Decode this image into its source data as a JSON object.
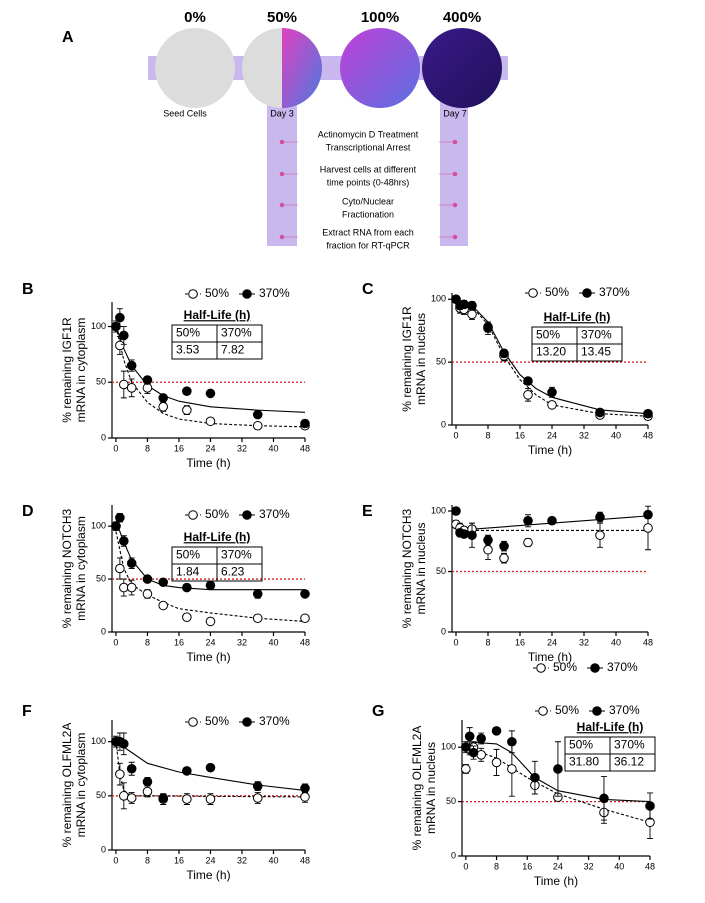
{
  "diagram": {
    "panel": "A",
    "stages": [
      {
        "label": "0%",
        "color": "#d64f9a"
      },
      {
        "label": "50%",
        "color": "#d64f9a"
      },
      {
        "label": "100%",
        "color": "#b48ad8"
      },
      {
        "label": "400%",
        "color": "#5b7fd6"
      }
    ],
    "captions": [
      "Seed Cells",
      "Day 3",
      "Day 7"
    ],
    "steps": [
      [
        "Actinomycin D Treatment",
        "Transcriptional Arrest"
      ],
      [
        "Harvest cells at different",
        "time points (0-48hrs)"
      ],
      [
        "Cyto/Nuclear",
        "Fractionation"
      ],
      [
        "Extract RNA from each",
        "fraction for RT-qPCR"
      ]
    ]
  },
  "chart_data": [
    {
      "type": "scatter",
      "panel": "B",
      "ylabel": [
        "% remaining IGF1R",
        "mRNA in cytoplasm"
      ],
      "xlabel": "Time (h)",
      "xlim": [
        -1,
        48
      ],
      "xticks": [
        0,
        8,
        16,
        24,
        32,
        40,
        48
      ],
      "ylim": [
        0,
        122
      ],
      "yticks": [
        0,
        50,
        100
      ],
      "ref_line": {
        "value": 50,
        "color": "#cc2222"
      },
      "half_life": {
        "title": "Half-Life (h)",
        "columns": [
          "50%",
          "370%"
        ],
        "values": [
          "3.53",
          "7.82"
        ]
      },
      "series": [
        {
          "name": "50%",
          "color": "#000000",
          "fill": "#ffffff",
          "dashed": true,
          "x": [
            0,
            1,
            2,
            4,
            8,
            12,
            18,
            24,
            36,
            48
          ],
          "values": [
            100,
            83,
            48,
            45,
            45,
            28,
            25,
            15,
            11,
            11
          ],
          "errors": [
            3,
            8,
            12,
            8,
            5,
            4,
            4,
            2,
            2,
            2
          ],
          "fit": {
            "x": [
              0,
              2,
              4,
              8,
              12,
              16,
              24,
              36,
              48
            ],
            "values": [
              100,
              70,
              50,
              32,
              22,
              17,
              13,
              11,
              10
            ]
          }
        },
        {
          "name": "370%",
          "color": "#000000",
          "fill": "#000000",
          "dashed": false,
          "x": [
            0,
            1,
            2,
            4,
            8,
            12,
            18,
            24,
            36,
            48
          ],
          "values": [
            100,
            108,
            92,
            65,
            52,
            36,
            42,
            40,
            21,
            13
          ],
          "errors": [
            5,
            8,
            8,
            5,
            3,
            3,
            2,
            2,
            2,
            3
          ],
          "fit": {
            "x": [
              0,
              2,
              4,
              8,
              12,
              16,
              24,
              36,
              48
            ],
            "values": [
              100,
              80,
              65,
              47,
              38,
              33,
              28,
              25,
              23
            ]
          }
        }
      ]
    },
    {
      "type": "scatter",
      "panel": "C",
      "ylabel": [
        "% remaining IGF1R",
        "mRNA in nucleus"
      ],
      "xlabel": "Time (h)",
      "xlim": [
        -1,
        48
      ],
      "xticks": [
        0,
        8,
        16,
        24,
        32,
        40,
        48
      ],
      "ylim": [
        0,
        105
      ],
      "yticks": [
        0,
        50,
        100
      ],
      "ref_line": {
        "value": 50,
        "color": "#cc2222"
      },
      "half_life": {
        "title": "Half-Life (h)",
        "columns": [
          "50%",
          "370%"
        ],
        "values": [
          "13.20",
          "13.45"
        ]
      },
      "series": [
        {
          "name": "50%",
          "color": "#000000",
          "fill": "#ffffff",
          "dashed": true,
          "x": [
            0,
            1,
            2,
            4,
            8,
            12,
            18,
            24,
            36,
            48
          ],
          "values": [
            100,
            93,
            92,
            88,
            77,
            55,
            24,
            16,
            8,
            7
          ],
          "errors": [
            2,
            4,
            4,
            4,
            5,
            4,
            5,
            2,
            2,
            2
          ],
          "fit": {
            "x": [
              0,
              4,
              8,
              12,
              16,
              20,
              24,
              36,
              48
            ],
            "values": [
              100,
              94,
              80,
              55,
              36,
              24,
              16,
              9,
              7
            ]
          }
        },
        {
          "name": "370%",
          "color": "#000000",
          "fill": "#000000",
          "dashed": false,
          "x": [
            0,
            1,
            2,
            4,
            8,
            12,
            18,
            24,
            36,
            48
          ],
          "values": [
            100,
            95,
            96,
            95,
            78,
            57,
            35,
            26,
            10,
            9
          ],
          "errors": [
            2,
            3,
            3,
            3,
            4,
            3,
            2,
            4,
            2,
            2
          ],
          "fit": {
            "x": [
              0,
              4,
              8,
              12,
              16,
              20,
              24,
              36,
              48
            ],
            "values": [
              100,
              95,
              82,
              58,
              40,
              29,
              22,
              12,
              9
            ]
          }
        }
      ]
    },
    {
      "type": "scatter",
      "panel": "D",
      "ylabel": [
        "% remaining NOTCH3",
        "mRNA in cytoplasm"
      ],
      "xlabel": "Time (h)",
      "xlim": [
        -1,
        48
      ],
      "xticks": [
        0,
        8,
        16,
        24,
        32,
        40,
        48
      ],
      "ylim": [
        0,
        120
      ],
      "yticks": [
        0,
        50,
        100
      ],
      "ref_line": {
        "value": 50,
        "color": "#cc2222"
      },
      "half_life": {
        "title": "Half-Life (h)",
        "columns": [
          "50%",
          "370%"
        ],
        "values": [
          "1.84",
          "6.23"
        ]
      },
      "series": [
        {
          "name": "50%",
          "color": "#000000",
          "fill": "#ffffff",
          "dashed": true,
          "x": [
            0,
            1,
            2,
            4,
            8,
            12,
            18,
            24,
            36,
            48
          ],
          "values": [
            100,
            60,
            42,
            42,
            36,
            25,
            14,
            10,
            13,
            13
          ],
          "errors": [
            3,
            10,
            8,
            7,
            4,
            2,
            2,
            2,
            2,
            2
          ],
          "fit": {
            "x": [
              0,
              2,
              4,
              8,
              12,
              16,
              24,
              36,
              48
            ],
            "values": [
              95,
              60,
              45,
              35,
              28,
              22,
              18,
              13,
              10
            ]
          }
        },
        {
          "name": "370%",
          "color": "#000000",
          "fill": "#000000",
          "dashed": false,
          "x": [
            0,
            1,
            2,
            4,
            8,
            12,
            18,
            24,
            36,
            48
          ],
          "values": [
            100,
            108,
            86,
            65,
            50,
            47,
            42,
            44,
            36,
            36
          ],
          "errors": [
            4,
            4,
            5,
            5,
            2,
            2,
            2,
            3,
            4,
            3
          ],
          "fit": {
            "x": [
              0,
              2,
              4,
              8,
              12,
              16,
              24,
              48
            ],
            "values": [
              105,
              85,
              68,
              50,
              44,
              42,
              40,
              40
            ]
          }
        }
      ]
    },
    {
      "type": "scatter",
      "panel": "E",
      "ylabel": [
        "% remaining NOTCH3",
        "mRNA in nucleus"
      ],
      "xlabel": "Time (h)",
      "xlim": [
        -1,
        48
      ],
      "xticks": [
        0,
        8,
        16,
        24,
        32,
        40,
        48
      ],
      "ylim": [
        0,
        105
      ],
      "yticks": [
        0,
        50,
        100
      ],
      "ref_line": {
        "value": 50,
        "color": "#cc2222"
      },
      "series": [
        {
          "name": "50%",
          "color": "#000000",
          "fill": "#ffffff",
          "dashed": true,
          "x": [
            0,
            1,
            2,
            4,
            8,
            12,
            18,
            36,
            48
          ],
          "values": [
            89,
            86,
            84,
            85,
            68,
            61,
            74,
            80,
            86
          ],
          "errors": [
            3,
            4,
            3,
            5,
            8,
            4,
            3,
            10,
            18
          ],
          "fit": {
            "x": [
              0,
              48
            ],
            "values": [
              84,
              84
            ]
          }
        },
        {
          "name": "370%",
          "color": "#000000",
          "fill": "#000000",
          "dashed": false,
          "x": [
            0,
            1,
            2,
            4,
            8,
            12,
            18,
            24,
            36,
            48
          ],
          "values": [
            100,
            82,
            81,
            80,
            76,
            71,
            92,
            92,
            95,
            97
          ],
          "errors": [
            2,
            3,
            3,
            10,
            4,
            4,
            5,
            2,
            4,
            3
          ],
          "fit": {
            "x": [
              0,
              48
            ],
            "values": [
              84,
              96
            ]
          }
        }
      ]
    },
    {
      "type": "scatter",
      "panel": "F",
      "ylabel": [
        "% remaining OLFML2A",
        "mRNA in cytoplasm"
      ],
      "xlabel": "Time (h)",
      "xlim": [
        -1,
        48
      ],
      "xticks": [
        0,
        8,
        16,
        24,
        32,
        40,
        48
      ],
      "ylim": [
        0,
        120
      ],
      "yticks": [
        0,
        50,
        100
      ],
      "ref_line": {
        "value": 50,
        "color": "#cc2222"
      },
      "series": [
        {
          "name": "50%",
          "color": "#000000",
          "fill": "#ffffff",
          "dashed": true,
          "x": [
            0,
            1,
            2,
            4,
            8,
            12,
            18,
            24,
            36,
            48
          ],
          "values": [
            100,
            70,
            50,
            48,
            54,
            47,
            47,
            47,
            48,
            49
          ],
          "errors": [
            5,
            10,
            12,
            5,
            5,
            5,
            5,
            5,
            5,
            5
          ],
          "fit": {
            "x": [
              0,
              1,
              2,
              4,
              48
            ],
            "values": [
              100,
              70,
              55,
              50,
              49
            ]
          }
        },
        {
          "name": "370%",
          "color": "#000000",
          "fill": "#000000",
          "dashed": false,
          "x": [
            0,
            1,
            2,
            4,
            8,
            12,
            18,
            24,
            36,
            48
          ],
          "values": [
            100,
            100,
            98,
            75,
            63,
            48,
            73,
            76,
            59,
            57
          ],
          "errors": [
            3,
            8,
            10,
            6,
            4,
            3,
            3,
            2,
            4,
            4
          ],
          "fit": {
            "x": [
              0,
              4,
              8,
              16,
              24,
              36,
              48
            ],
            "values": [
              100,
              90,
              80,
              72,
              67,
              60,
              55
            ]
          }
        }
      ]
    },
    {
      "type": "scatter",
      "panel": "G",
      "ylabel": [
        "% remaining OLFML2A",
        "mRNA in nucleus"
      ],
      "xlabel": "Time (h)",
      "xlim": [
        -1,
        48
      ],
      "xticks": [
        0,
        8,
        16,
        24,
        32,
        40,
        48
      ],
      "ylim": [
        0,
        125
      ],
      "yticks": [
        0,
        50,
        100
      ],
      "ref_line": {
        "value": 50,
        "color": "#cc2222"
      },
      "half_life": {
        "title": "Half-Life (h)",
        "columns": [
          "50%",
          "370%"
        ],
        "values": [
          "31.80",
          "36.12"
        ]
      },
      "series": [
        {
          "name": "50%",
          "color": "#000000",
          "fill": "#ffffff",
          "dashed": true,
          "x": [
            0,
            1,
            2,
            4,
            8,
            12,
            18,
            24,
            36,
            48
          ],
          "values": [
            80,
            98,
            100,
            93,
            86,
            80,
            65,
            54,
            40,
            31
          ],
          "errors": [
            4,
            5,
            5,
            6,
            12,
            25,
            8,
            3,
            10,
            15
          ],
          "fit": {
            "x": [
              0,
              8,
              16,
              24,
              36,
              48
            ],
            "values": [
              100,
              90,
              72,
              57,
              43,
              31
            ]
          }
        },
        {
          "name": "370%",
          "color": "#000000",
          "fill": "#000000",
          "dashed": false,
          "x": [
            0,
            1,
            2,
            4,
            8,
            12,
            18,
            24,
            36,
            48
          ],
          "values": [
            100,
            110,
            95,
            108,
            115,
            105,
            72,
            80,
            53,
            46
          ],
          "errors": [
            5,
            8,
            6,
            5,
            3,
            10,
            15,
            25,
            20,
            12
          ],
          "fit": {
            "x": [
              0,
              8,
              12,
              18,
              24,
              36,
              48
            ],
            "values": [
              105,
              103,
              95,
              72,
              60,
              52,
              50
            ]
          }
        }
      ]
    }
  ]
}
